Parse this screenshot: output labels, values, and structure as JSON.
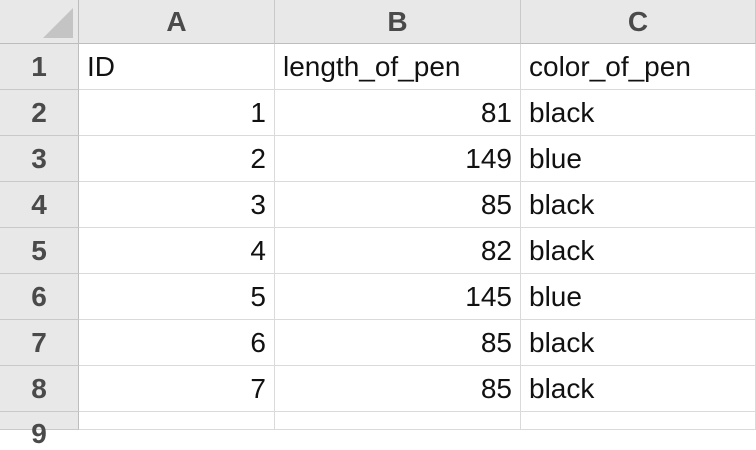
{
  "columns": [
    "A",
    "B",
    "C"
  ],
  "row_numbers": [
    "1",
    "2",
    "3",
    "4",
    "5",
    "6",
    "7",
    "8",
    "9"
  ],
  "rows": [
    [
      "ID",
      "length_of_pen",
      "color_of_pen"
    ],
    [
      "1",
      "81",
      "black"
    ],
    [
      "2",
      "149",
      "blue"
    ],
    [
      "3",
      "85",
      "black"
    ],
    [
      "4",
      "82",
      "black"
    ],
    [
      "5",
      "145",
      "blue"
    ],
    [
      "6",
      "85",
      "black"
    ],
    [
      "7",
      "85",
      "black"
    ],
    [
      "",
      "",
      ""
    ]
  ]
}
